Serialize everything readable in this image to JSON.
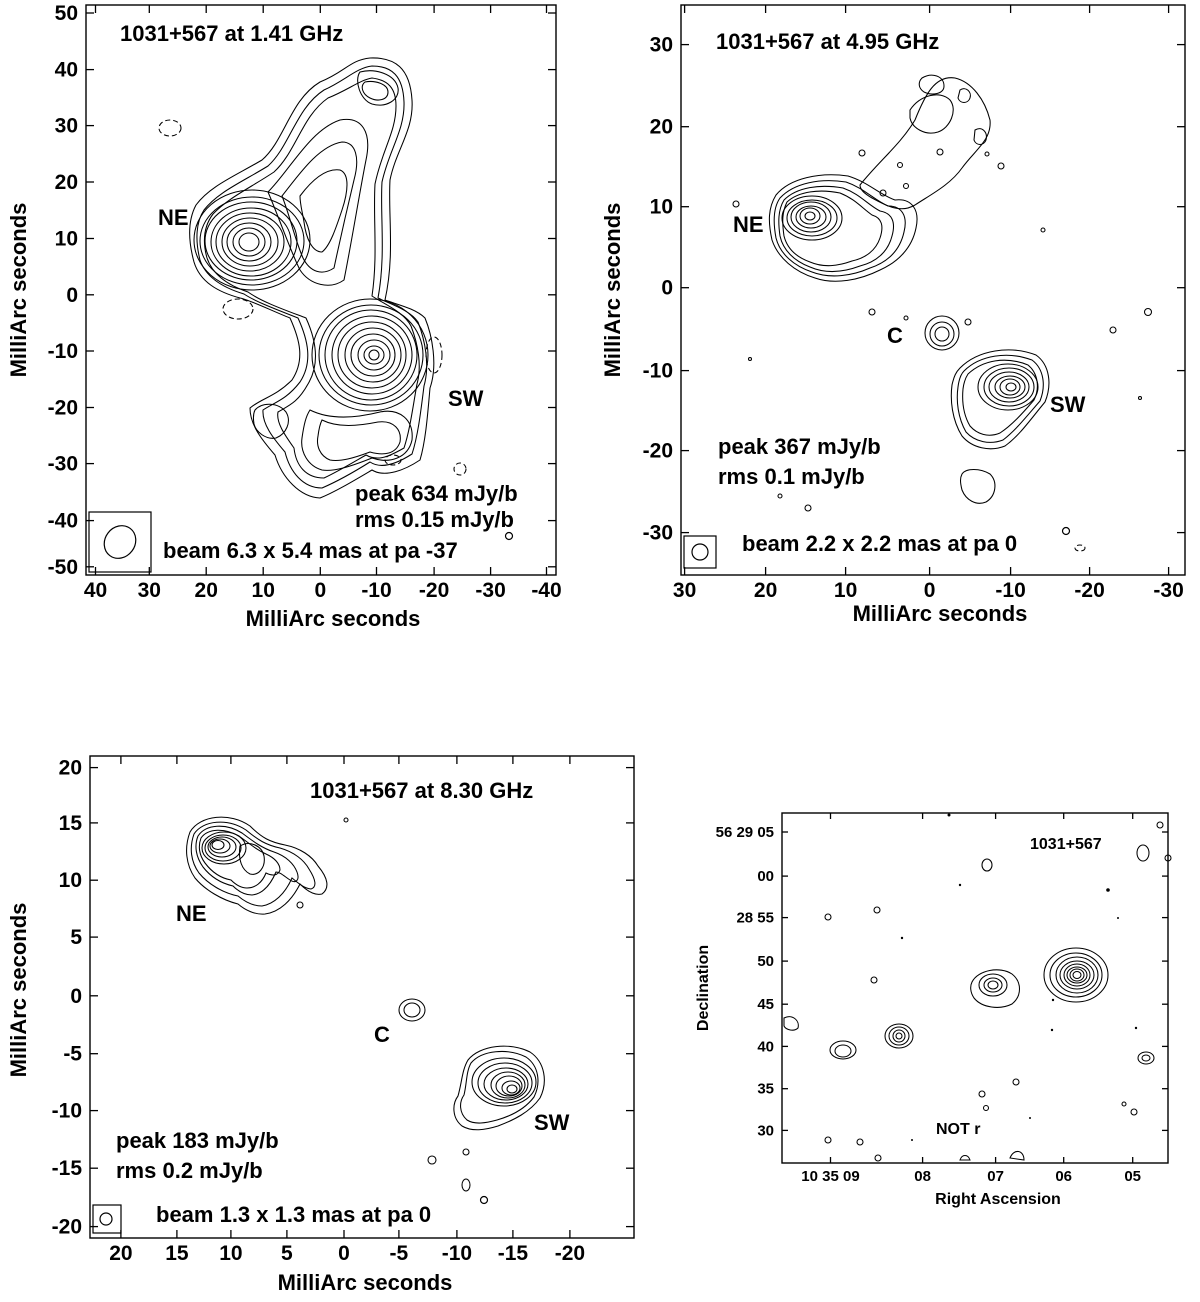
{
  "panels": [
    {
      "id": "p1",
      "title": "1031+567  at 1.41 GHz",
      "xlabel": "MilliArc seconds",
      "ylabel": "MilliArc seconds",
      "xlim": [
        42,
        -46
      ],
      "ylim": [
        -52,
        52
      ],
      "xticks": [
        "40",
        "30",
        "20",
        "10",
        "0",
        "-10",
        "-20",
        "-30",
        "-40"
      ],
      "yticks": [
        "50",
        "40",
        "30",
        "20",
        "10",
        "0",
        "-10",
        "-20",
        "-30",
        "-40",
        "-50"
      ],
      "components": [
        "NE",
        "SW"
      ],
      "peak": "peak 634 mJy/b",
      "rms": "rms 0.15 mJy/b",
      "beam": "beam 6.3 x 5.4 mas at pa -37"
    },
    {
      "id": "p2",
      "title": "1031+567  at 4.95 GHz",
      "xlabel": "MilliArc seconds",
      "ylabel": "MilliArc seconds",
      "xlim": [
        30.5,
        -32
      ],
      "ylim": [
        -35,
        35
      ],
      "xticks": [
        "30",
        "20",
        "10",
        "0",
        "-10",
        "-20",
        "-30"
      ],
      "yticks": [
        "30",
        "20",
        "10",
        "0",
        "-10",
        "-20",
        "-30"
      ],
      "components": [
        "NE",
        "C",
        "SW"
      ],
      "peak": "peak 367 mJy/b",
      "rms": "rms 0.1 mJy/b",
      "beam": "beam 2.2 x 2.2 mas at pa 0"
    },
    {
      "id": "p3",
      "title": "1031+567  at 8.30 GHz",
      "xlabel": "MilliArc seconds",
      "ylabel": "MilliArc seconds",
      "xlim": [
        24,
        -25
      ],
      "ylim": [
        -21,
        21
      ],
      "xticks": [
        "20",
        "15",
        "10",
        "5",
        "0",
        "-5",
        "-10",
        "-15",
        "-20"
      ],
      "yticks": [
        "20",
        "15",
        "10",
        "5",
        "0",
        "-5",
        "-10",
        "-15",
        "-20"
      ],
      "components": [
        "NE",
        "C",
        "SW"
      ],
      "peak": "peak 183 mJy/b",
      "rms": "rms 0.2 mJy/b",
      "beam": "beam 1.3 x 1.3 mas at pa 0"
    },
    {
      "id": "p4",
      "title": "1031+567",
      "xlabel": "Right Ascension",
      "ylabel": "Declination",
      "xticks": [
        "10 35 09",
        "08",
        "07",
        "06",
        "05"
      ],
      "yticks": [
        "56 29 05",
        "00",
        "28 55",
        "50",
        "45",
        "40",
        "35",
        "30"
      ],
      "filter": "NOT r"
    }
  ]
}
